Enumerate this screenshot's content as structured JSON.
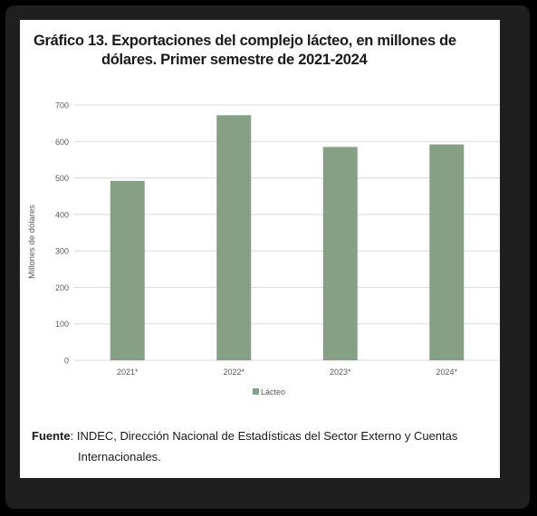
{
  "title": {
    "label": "Gráfico 13.",
    "line1": "Exportaciones del complejo lácteo, en millones de",
    "line2": "dólares. Primer semestre de 2021-2024"
  },
  "source": {
    "label": "Fuente",
    "text1": ": INDEC, Dirección Nacional de Estadísticas del Sector Externo y Cuentas",
    "text2": "Internacionales."
  },
  "colors": {
    "bar": "#86a085",
    "grid": "#d9d9d9",
    "axis_text": "#595959"
  },
  "chart_data": {
    "type": "bar",
    "categories": [
      "2021*",
      "2022*",
      "2023*",
      "2024*"
    ],
    "series": [
      {
        "name": "Lácteo",
        "values": [
          492,
          672,
          585,
          592
        ]
      }
    ],
    "ylabel": "Millones de dólares",
    "xlabel": "",
    "ylim": [
      0,
      700
    ],
    "yticks": [
      0,
      100,
      200,
      300,
      400,
      500,
      600,
      700
    ],
    "grid": true,
    "legend_position": "bottom"
  }
}
